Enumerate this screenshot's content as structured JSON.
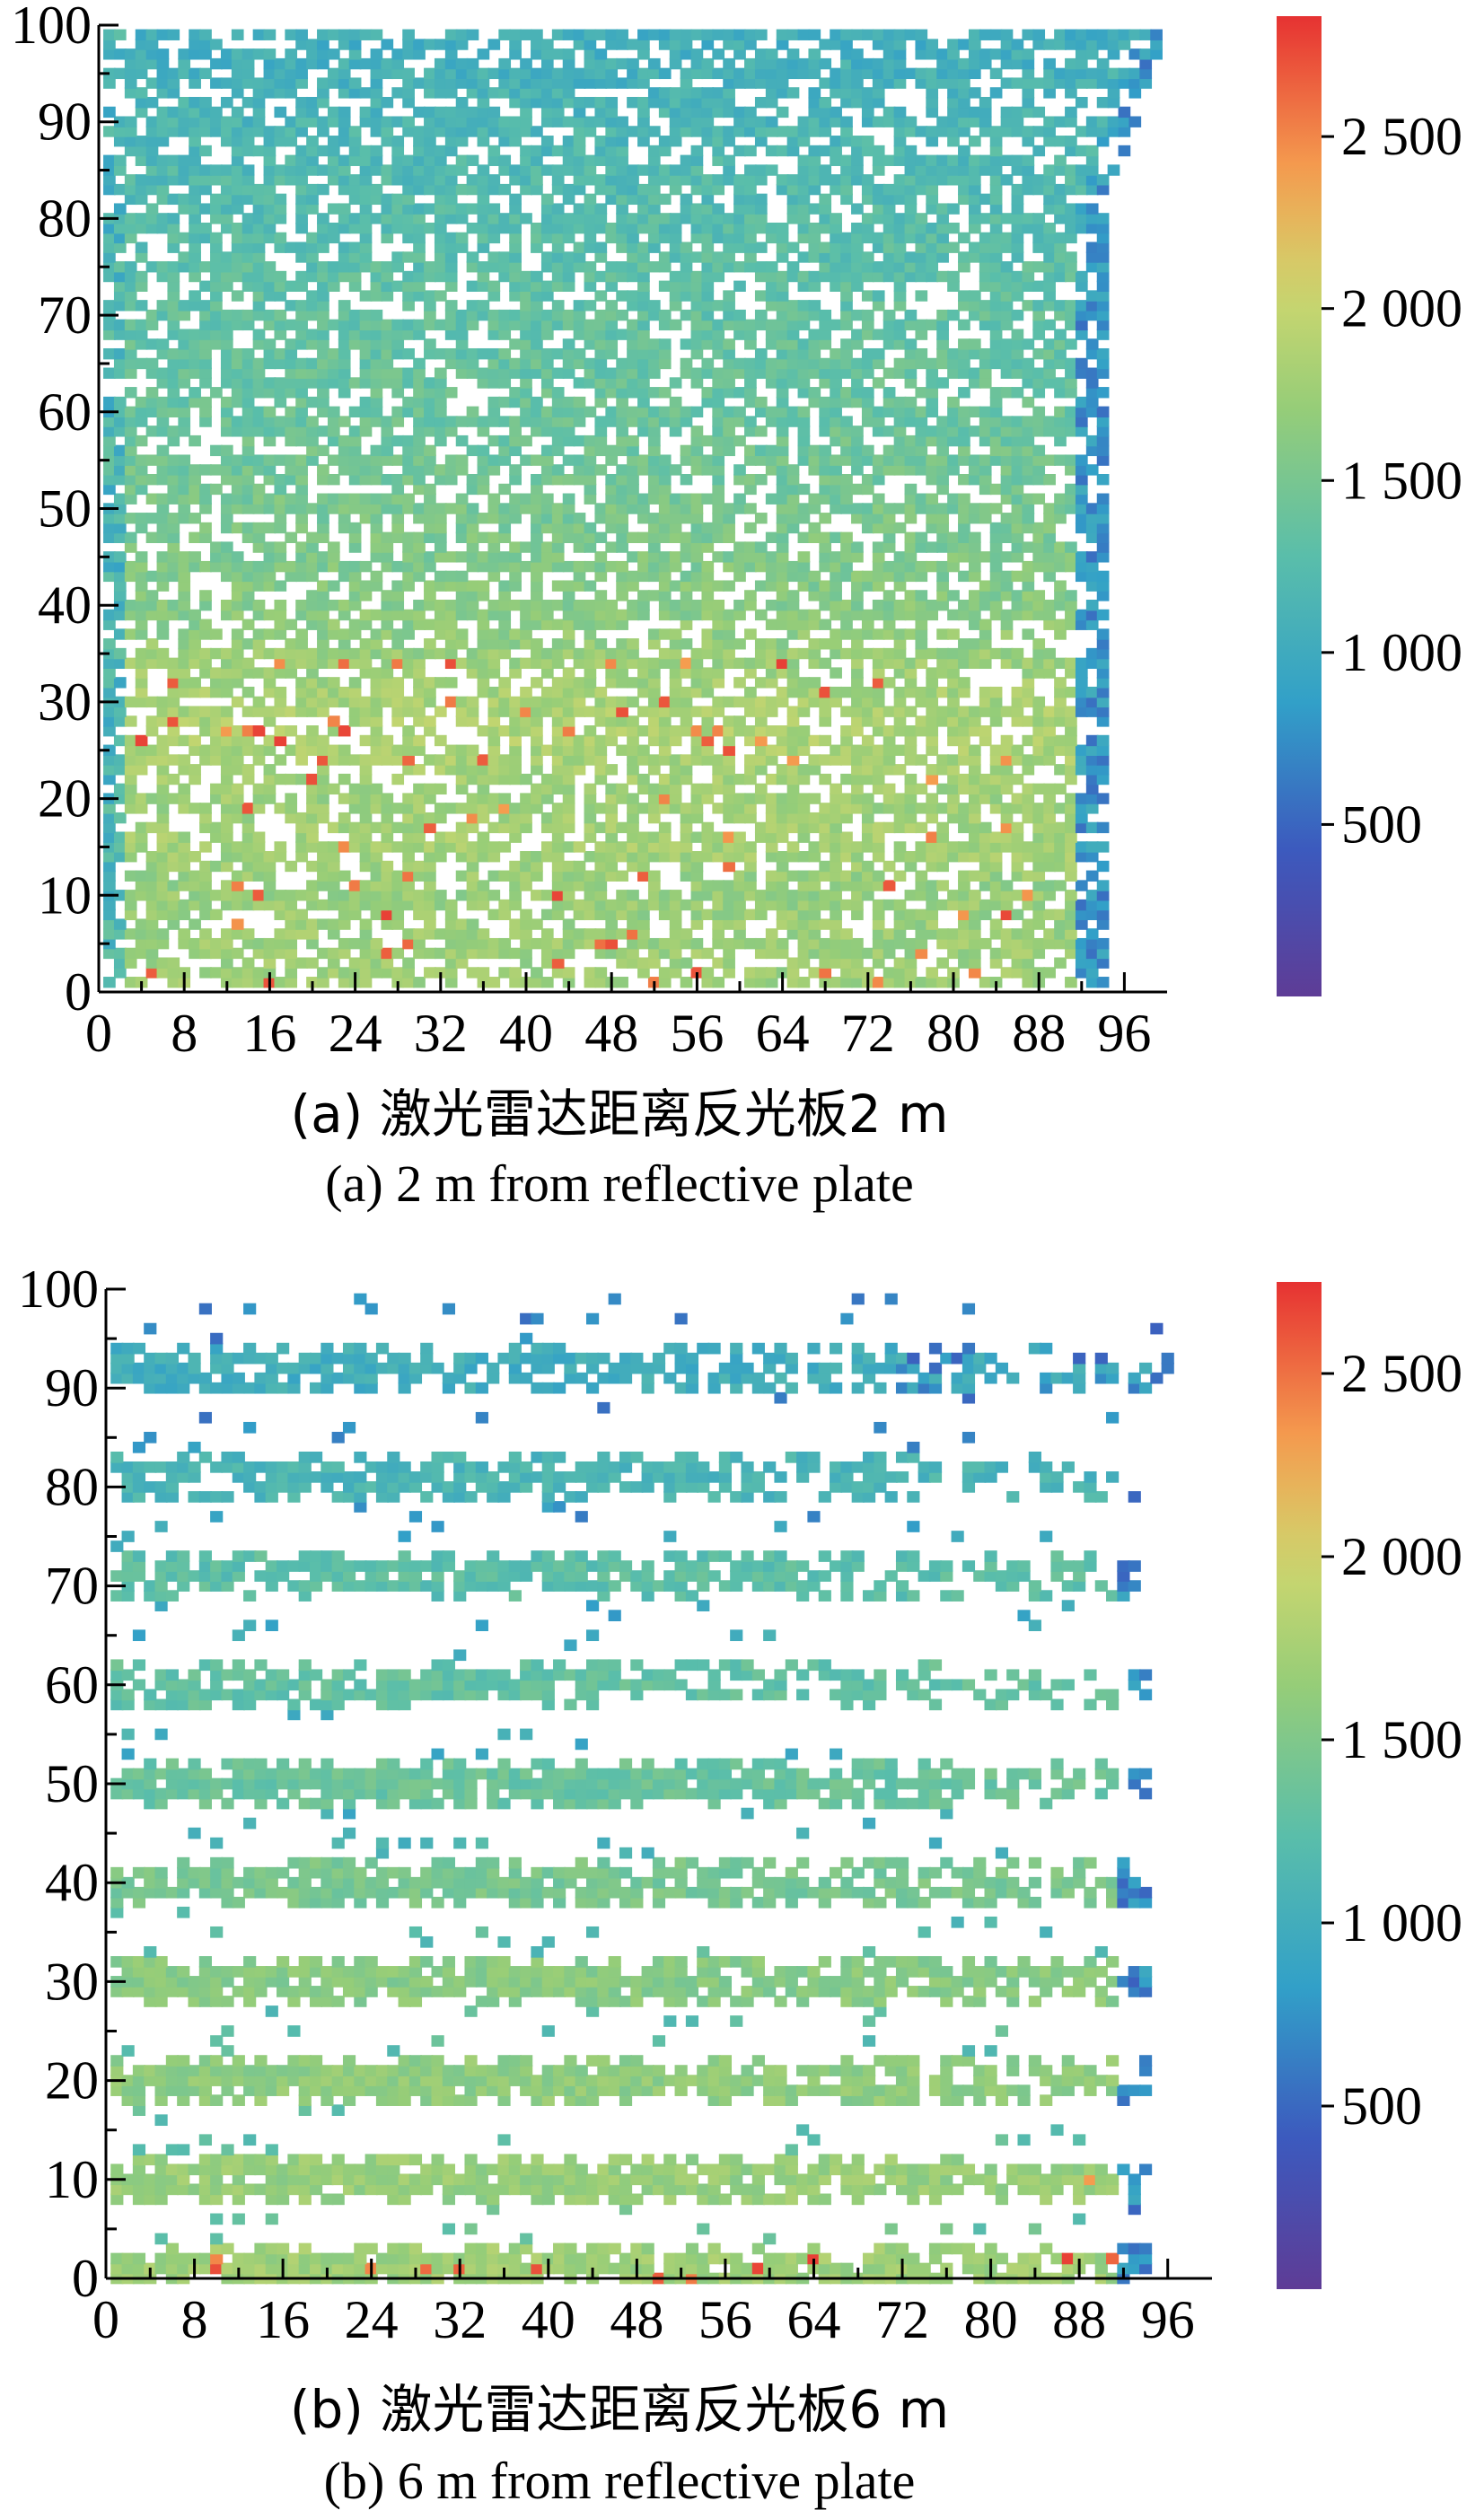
{
  "chart_data": [
    {
      "type": "heatmap",
      "caption_zh": "(a) 激光雷达距离反光板2 m",
      "caption_en": "(a) 2 m from reflective plate",
      "xlim": [
        0,
        100
      ],
      "ylim": [
        0,
        100
      ],
      "x_ticks": [
        0,
        8,
        16,
        24,
        32,
        40,
        48,
        56,
        64,
        72,
        80,
        88,
        96
      ],
      "y_ticks": [
        0,
        10,
        20,
        30,
        40,
        50,
        60,
        70,
        80,
        90,
        100
      ],
      "colorbar": {
        "range": [
          0,
          2850
        ],
        "ticks": [
          500,
          1000,
          1500,
          2000,
          2500
        ],
        "tick_labels": [
          "500",
          "1 000",
          "1 500",
          "2 000",
          "2 500"
        ]
      },
      "rows_with_dense_returns_y": [
        0,
        5,
        10,
        15,
        20,
        25,
        30,
        35,
        40,
        45,
        50,
        55,
        60,
        65,
        70,
        75,
        80,
        85,
        90,
        95,
        100
      ],
      "band_values": [
        {
          "y": 4,
          "value": 1750
        },
        {
          "y": 11,
          "value": 1700
        },
        {
          "y": 15,
          "value": 1800
        },
        {
          "y": 20,
          "value": 1750
        },
        {
          "y": 26,
          "value": 1850
        },
        {
          "y": 31,
          "value": 1800
        },
        {
          "y": 40,
          "value": 1600
        },
        {
          "y": 50,
          "value": 1500
        },
        {
          "y": 60,
          "value": 1400
        },
        {
          "y": 70,
          "value": 1350
        },
        {
          "y": 80,
          "value": 1250
        },
        {
          "y": 90,
          "value": 1150
        },
        {
          "y": 98,
          "value": 1050
        }
      ],
      "right_edge_value": 800,
      "point_spacing": 1,
      "density": 0.72
    },
    {
      "type": "heatmap",
      "caption_zh": "(b) 激光雷达距离反光板6 m",
      "caption_en": "(b) 6 m from reflective plate",
      "xlim": [
        0,
        100
      ],
      "ylim": [
        0,
        100
      ],
      "x_ticks": [
        0,
        8,
        16,
        24,
        32,
        40,
        48,
        56,
        64,
        72,
        80,
        88,
        96
      ],
      "y_ticks": [
        0,
        10,
        20,
        30,
        40,
        50,
        60,
        70,
        80,
        90,
        100
      ],
      "colorbar": {
        "range": [
          0,
          2750
        ],
        "ticks": [
          500,
          1000,
          1500,
          2000,
          2500
        ],
        "tick_labels": [
          "500",
          "1 000",
          "1 500",
          "2 000",
          "2 500"
        ]
      },
      "bands": [
        {
          "y": 1,
          "value": 1700
        },
        {
          "y": 10,
          "value": 1650
        },
        {
          "y": 20,
          "value": 1600
        },
        {
          "y": 30,
          "value": 1550
        },
        {
          "y": 40,
          "value": 1450
        },
        {
          "y": 50,
          "value": 1350
        },
        {
          "y": 60,
          "value": 1300
        },
        {
          "y": 71,
          "value": 1250
        },
        {
          "y": 81,
          "value": 1100
        },
        {
          "y": 92,
          "value": 1000
        }
      ],
      "right_edge_value": 700,
      "point_spacing": 1,
      "density": 0.45
    }
  ]
}
